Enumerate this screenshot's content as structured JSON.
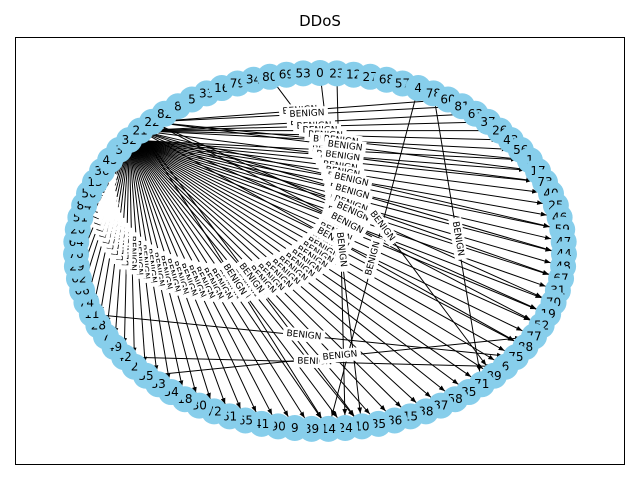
{
  "figure": {
    "title": "DDoS",
    "node_color": "#87ceeb",
    "edge_color": "#000000",
    "layout": "circular"
  },
  "graph": {
    "nodes": [
      "0",
      "23",
      "12",
      "27",
      "68",
      "57",
      "4",
      "78",
      "60",
      "81",
      "63",
      "37",
      "26",
      "43",
      "56",
      "1",
      "17",
      "73",
      "40",
      "25",
      "46",
      "59",
      "47",
      "44",
      "48",
      "67",
      "31",
      "70",
      "19",
      "52",
      "77",
      "88",
      "75",
      "6",
      "89",
      "71",
      "35",
      "58",
      "87",
      "38",
      "15",
      "86",
      "85",
      "10",
      "24",
      "14",
      "39",
      "9",
      "90",
      "41",
      "65",
      "61",
      "72",
      "30",
      "18",
      "54",
      "83",
      "55",
      "2",
      "42",
      "49",
      "7",
      "28",
      "11",
      "74",
      "66",
      "62",
      "29",
      "76",
      "64",
      "20",
      "51",
      "84",
      "50",
      "13",
      "36",
      "45",
      "3",
      "32",
      "21",
      "22",
      "82",
      "8",
      "5",
      "33",
      "16",
      "79",
      "34",
      "80",
      "69",
      "53"
    ],
    "edge_label": "BENIGN",
    "edges": [
      [
        "32",
        "1"
      ],
      [
        "32",
        "17"
      ],
      [
        "32",
        "73"
      ],
      [
        "32",
        "40"
      ],
      [
        "32",
        "25"
      ],
      [
        "32",
        "46"
      ],
      [
        "32",
        "59"
      ],
      [
        "32",
        "47"
      ],
      [
        "32",
        "44"
      ],
      [
        "32",
        "48"
      ],
      [
        "32",
        "67"
      ],
      [
        "32",
        "31"
      ],
      [
        "32",
        "70"
      ],
      [
        "32",
        "19"
      ],
      [
        "32",
        "52"
      ],
      [
        "32",
        "77"
      ],
      [
        "32",
        "88"
      ],
      [
        "32",
        "75"
      ],
      [
        "32",
        "6"
      ],
      [
        "32",
        "89"
      ],
      [
        "32",
        "71"
      ],
      [
        "32",
        "35"
      ],
      [
        "32",
        "58"
      ],
      [
        "32",
        "87"
      ],
      [
        "32",
        "38"
      ],
      [
        "32",
        "15"
      ],
      [
        "32",
        "86"
      ],
      [
        "32",
        "85"
      ],
      [
        "32",
        "10"
      ],
      [
        "32",
        "24"
      ],
      [
        "32",
        "14"
      ],
      [
        "32",
        "39"
      ],
      [
        "32",
        "9"
      ],
      [
        "32",
        "90"
      ],
      [
        "32",
        "41"
      ],
      [
        "32",
        "65"
      ],
      [
        "32",
        "61"
      ],
      [
        "32",
        "72"
      ],
      [
        "32",
        "30"
      ],
      [
        "32",
        "18"
      ],
      [
        "32",
        "54"
      ],
      [
        "32",
        "83"
      ],
      [
        "32",
        "55"
      ],
      [
        "32",
        "2"
      ],
      [
        "32",
        "42"
      ],
      [
        "32",
        "49"
      ],
      [
        "32",
        "7"
      ],
      [
        "32",
        "28"
      ],
      [
        "32",
        "11"
      ],
      [
        "32",
        "74"
      ],
      [
        "32",
        "66"
      ],
      [
        "32",
        "62"
      ],
      [
        "32",
        "29"
      ],
      [
        "32",
        "76"
      ],
      [
        "32",
        "64"
      ],
      [
        "21",
        "63"
      ],
      [
        "21",
        "37"
      ],
      [
        "21",
        "26"
      ],
      [
        "21",
        "43"
      ],
      [
        "21",
        "56"
      ],
      [
        "21",
        "73"
      ],
      [
        "21",
        "59"
      ],
      [
        "21",
        "44"
      ],
      [
        "21",
        "67"
      ],
      [
        "21",
        "19"
      ],
      [
        "21",
        "88"
      ],
      [
        "21",
        "14"
      ],
      [
        "21",
        "10"
      ],
      [
        "22",
        "60"
      ],
      [
        "22",
        "81"
      ],
      [
        "22",
        "1"
      ],
      [
        "22",
        "17"
      ],
      [
        "22",
        "70"
      ],
      [
        "22",
        "52"
      ],
      [
        "80",
        "89"
      ],
      [
        "78",
        "71"
      ],
      [
        "4",
        "14"
      ],
      [
        "23",
        "24"
      ],
      [
        "0",
        "10"
      ],
      [
        "11",
        "75"
      ],
      [
        "42",
        "6"
      ],
      [
        "55",
        "77"
      ]
    ]
  }
}
